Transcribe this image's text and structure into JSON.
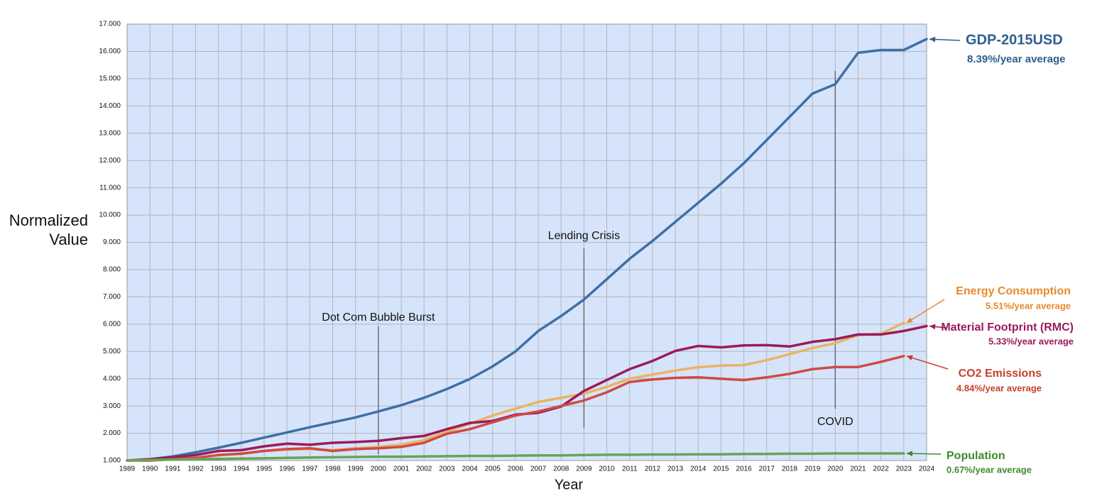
{
  "chart_data": {
    "type": "line",
    "ylabel": "Normalized Value",
    "xlabel": "Year",
    "x": [
      1989,
      1990,
      1991,
      1992,
      1993,
      1994,
      1995,
      1996,
      1997,
      1998,
      1999,
      2000,
      2001,
      2002,
      2003,
      2004,
      2005,
      2006,
      2007,
      2008,
      2009,
      2010,
      2011,
      2012,
      2013,
      2014,
      2015,
      2016,
      2017,
      2018,
      2019,
      2020,
      2021,
      2022,
      2023,
      2024
    ],
    "xlim": [
      1989,
      2024
    ],
    "xticks": [
      1989,
      1990,
      1991,
      1992,
      1993,
      1994,
      1995,
      1996,
      1997,
      1998,
      1999,
      2000,
      2001,
      2002,
      2003,
      2004,
      2005,
      2006,
      2007,
      2008,
      2009,
      2010,
      2011,
      2012,
      2013,
      2014,
      2015,
      2016,
      2017,
      2018,
      2019,
      2020,
      2021,
      2022,
      2023,
      2024
    ],
    "ylim": [
      1,
      17
    ],
    "yticks": [
      {
        "value": 1,
        "label": "1.000"
      },
      {
        "value": 2,
        "label": "2.000"
      },
      {
        "value": 3,
        "label": "3.000"
      },
      {
        "value": 4,
        "label": "4.000"
      },
      {
        "value": 5,
        "label": "5.000"
      },
      {
        "value": 6,
        "label": "6.000"
      },
      {
        "value": 7,
        "label": "7.000"
      },
      {
        "value": 8,
        "label": "8.000"
      },
      {
        "value": 9,
        "label": "9.000"
      },
      {
        "value": 10,
        "label": "10.000"
      },
      {
        "value": 11,
        "label": "11.000"
      },
      {
        "value": 12,
        "label": "12.000"
      },
      {
        "value": 13,
        "label": "13.000"
      },
      {
        "value": 14,
        "label": "14.000"
      },
      {
        "value": 15,
        "label": "15.000"
      },
      {
        "value": 16,
        "label": "16.000"
      },
      {
        "value": 17,
        "label": "17.000"
      }
    ],
    "grid": true,
    "series": [
      {
        "name": "GDP-2015USD",
        "note": "8.39%/year average",
        "color": "#3f6fa5",
        "label_color": "#2e5f8e",
        "values": [
          1.0,
          1.05,
          1.15,
          1.3,
          1.47,
          1.65,
          1.84,
          2.03,
          2.22,
          2.4,
          2.58,
          2.8,
          3.03,
          3.3,
          3.62,
          3.99,
          4.45,
          5.0,
          5.75,
          6.3,
          6.9,
          7.65,
          8.4,
          9.05,
          9.75,
          10.45,
          11.15,
          11.9,
          12.75,
          13.6,
          14.45,
          14.8,
          15.95,
          16.05,
          16.05,
          16.45
        ]
      },
      {
        "name": "Energy Consumption",
        "note": "5.51%/year average",
        "color": "#eab363",
        "label_color": "#e8892e",
        "values": [
          1.0,
          1.0,
          1.05,
          1.1,
          1.2,
          1.25,
          1.35,
          1.4,
          1.42,
          1.38,
          1.45,
          1.5,
          1.58,
          1.75,
          2.05,
          2.35,
          2.65,
          2.9,
          3.15,
          3.3,
          3.45,
          3.7,
          4.0,
          4.15,
          4.3,
          4.42,
          4.48,
          4.5,
          4.68,
          4.9,
          5.12,
          5.3,
          5.6,
          5.65,
          6.05,
          null
        ]
      },
      {
        "name": "Material Footprint (RMC)",
        "note": "5.33%/year average",
        "color": "#9b1b5a",
        "label_color": "#9b1b5a",
        "values": [
          1.0,
          1.05,
          1.12,
          1.2,
          1.35,
          1.38,
          1.52,
          1.62,
          1.58,
          1.65,
          1.68,
          1.72,
          1.82,
          1.9,
          2.15,
          2.38,
          2.45,
          2.68,
          2.75,
          2.98,
          3.55,
          3.95,
          4.35,
          4.65,
          5.02,
          5.2,
          5.15,
          5.22,
          5.23,
          5.18,
          5.35,
          5.45,
          5.62,
          5.62,
          5.75,
          5.93
        ]
      },
      {
        "name": "CO2 Emissions",
        "note": "4.84%/year average",
        "color": "#cf4a43",
        "label_color": "#c7402f",
        "values": [
          1.0,
          1.0,
          1.05,
          1.1,
          1.2,
          1.25,
          1.35,
          1.42,
          1.45,
          1.35,
          1.42,
          1.45,
          1.5,
          1.65,
          1.98,
          2.15,
          2.4,
          2.65,
          2.8,
          3.0,
          3.2,
          3.5,
          3.88,
          3.97,
          4.03,
          4.05,
          4.0,
          3.95,
          4.05,
          4.18,
          4.35,
          4.43,
          4.43,
          4.62,
          4.83,
          null
        ]
      },
      {
        "name": "Population",
        "note": "0.67%/year average",
        "color": "#67a457",
        "label_color": "#3f8a2f",
        "values": [
          1.0,
          1.02,
          1.03,
          1.05,
          1.06,
          1.07,
          1.08,
          1.1,
          1.11,
          1.12,
          1.13,
          1.14,
          1.14,
          1.15,
          1.16,
          1.17,
          1.17,
          1.18,
          1.19,
          1.19,
          1.2,
          1.21,
          1.21,
          1.22,
          1.22,
          1.23,
          1.23,
          1.24,
          1.24,
          1.25,
          1.25,
          1.26,
          1.26,
          1.26,
          1.26,
          null
        ]
      }
    ],
    "annotations": [
      {
        "text": "Dot Com Bubble Burst",
        "x": 2000
      },
      {
        "text": "Lending Crisis",
        "x": 2009
      },
      {
        "text": "COVID",
        "x": 2020
      }
    ]
  }
}
